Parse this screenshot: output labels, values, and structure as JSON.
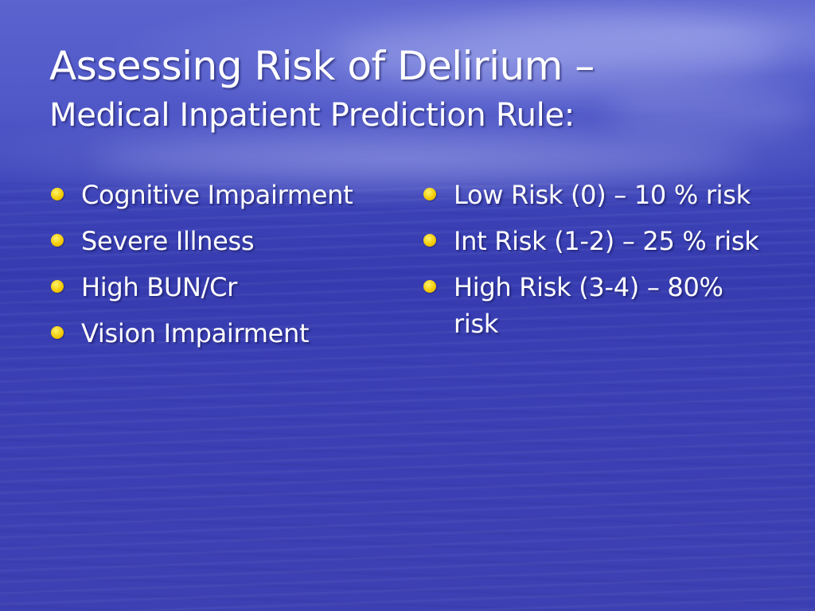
{
  "slide": {
    "title_line1": "Assessing Risk of Delirium –",
    "title_line2": "Medical Inpatient Prediction Rule:",
    "left_items": [
      "Cognitive Impairment",
      "Severe Illness",
      "High BUN/Cr",
      "Vision Impairment"
    ],
    "right_items": [
      "Low Risk (0) – 10 % risk",
      "Int Risk (1-2) – 25 % risk",
      "High Risk (3-4) – 80% risk"
    ]
  },
  "colors": {
    "background": "#3d44b8",
    "text": "#ffffff",
    "bullet": "#f3c800"
  }
}
